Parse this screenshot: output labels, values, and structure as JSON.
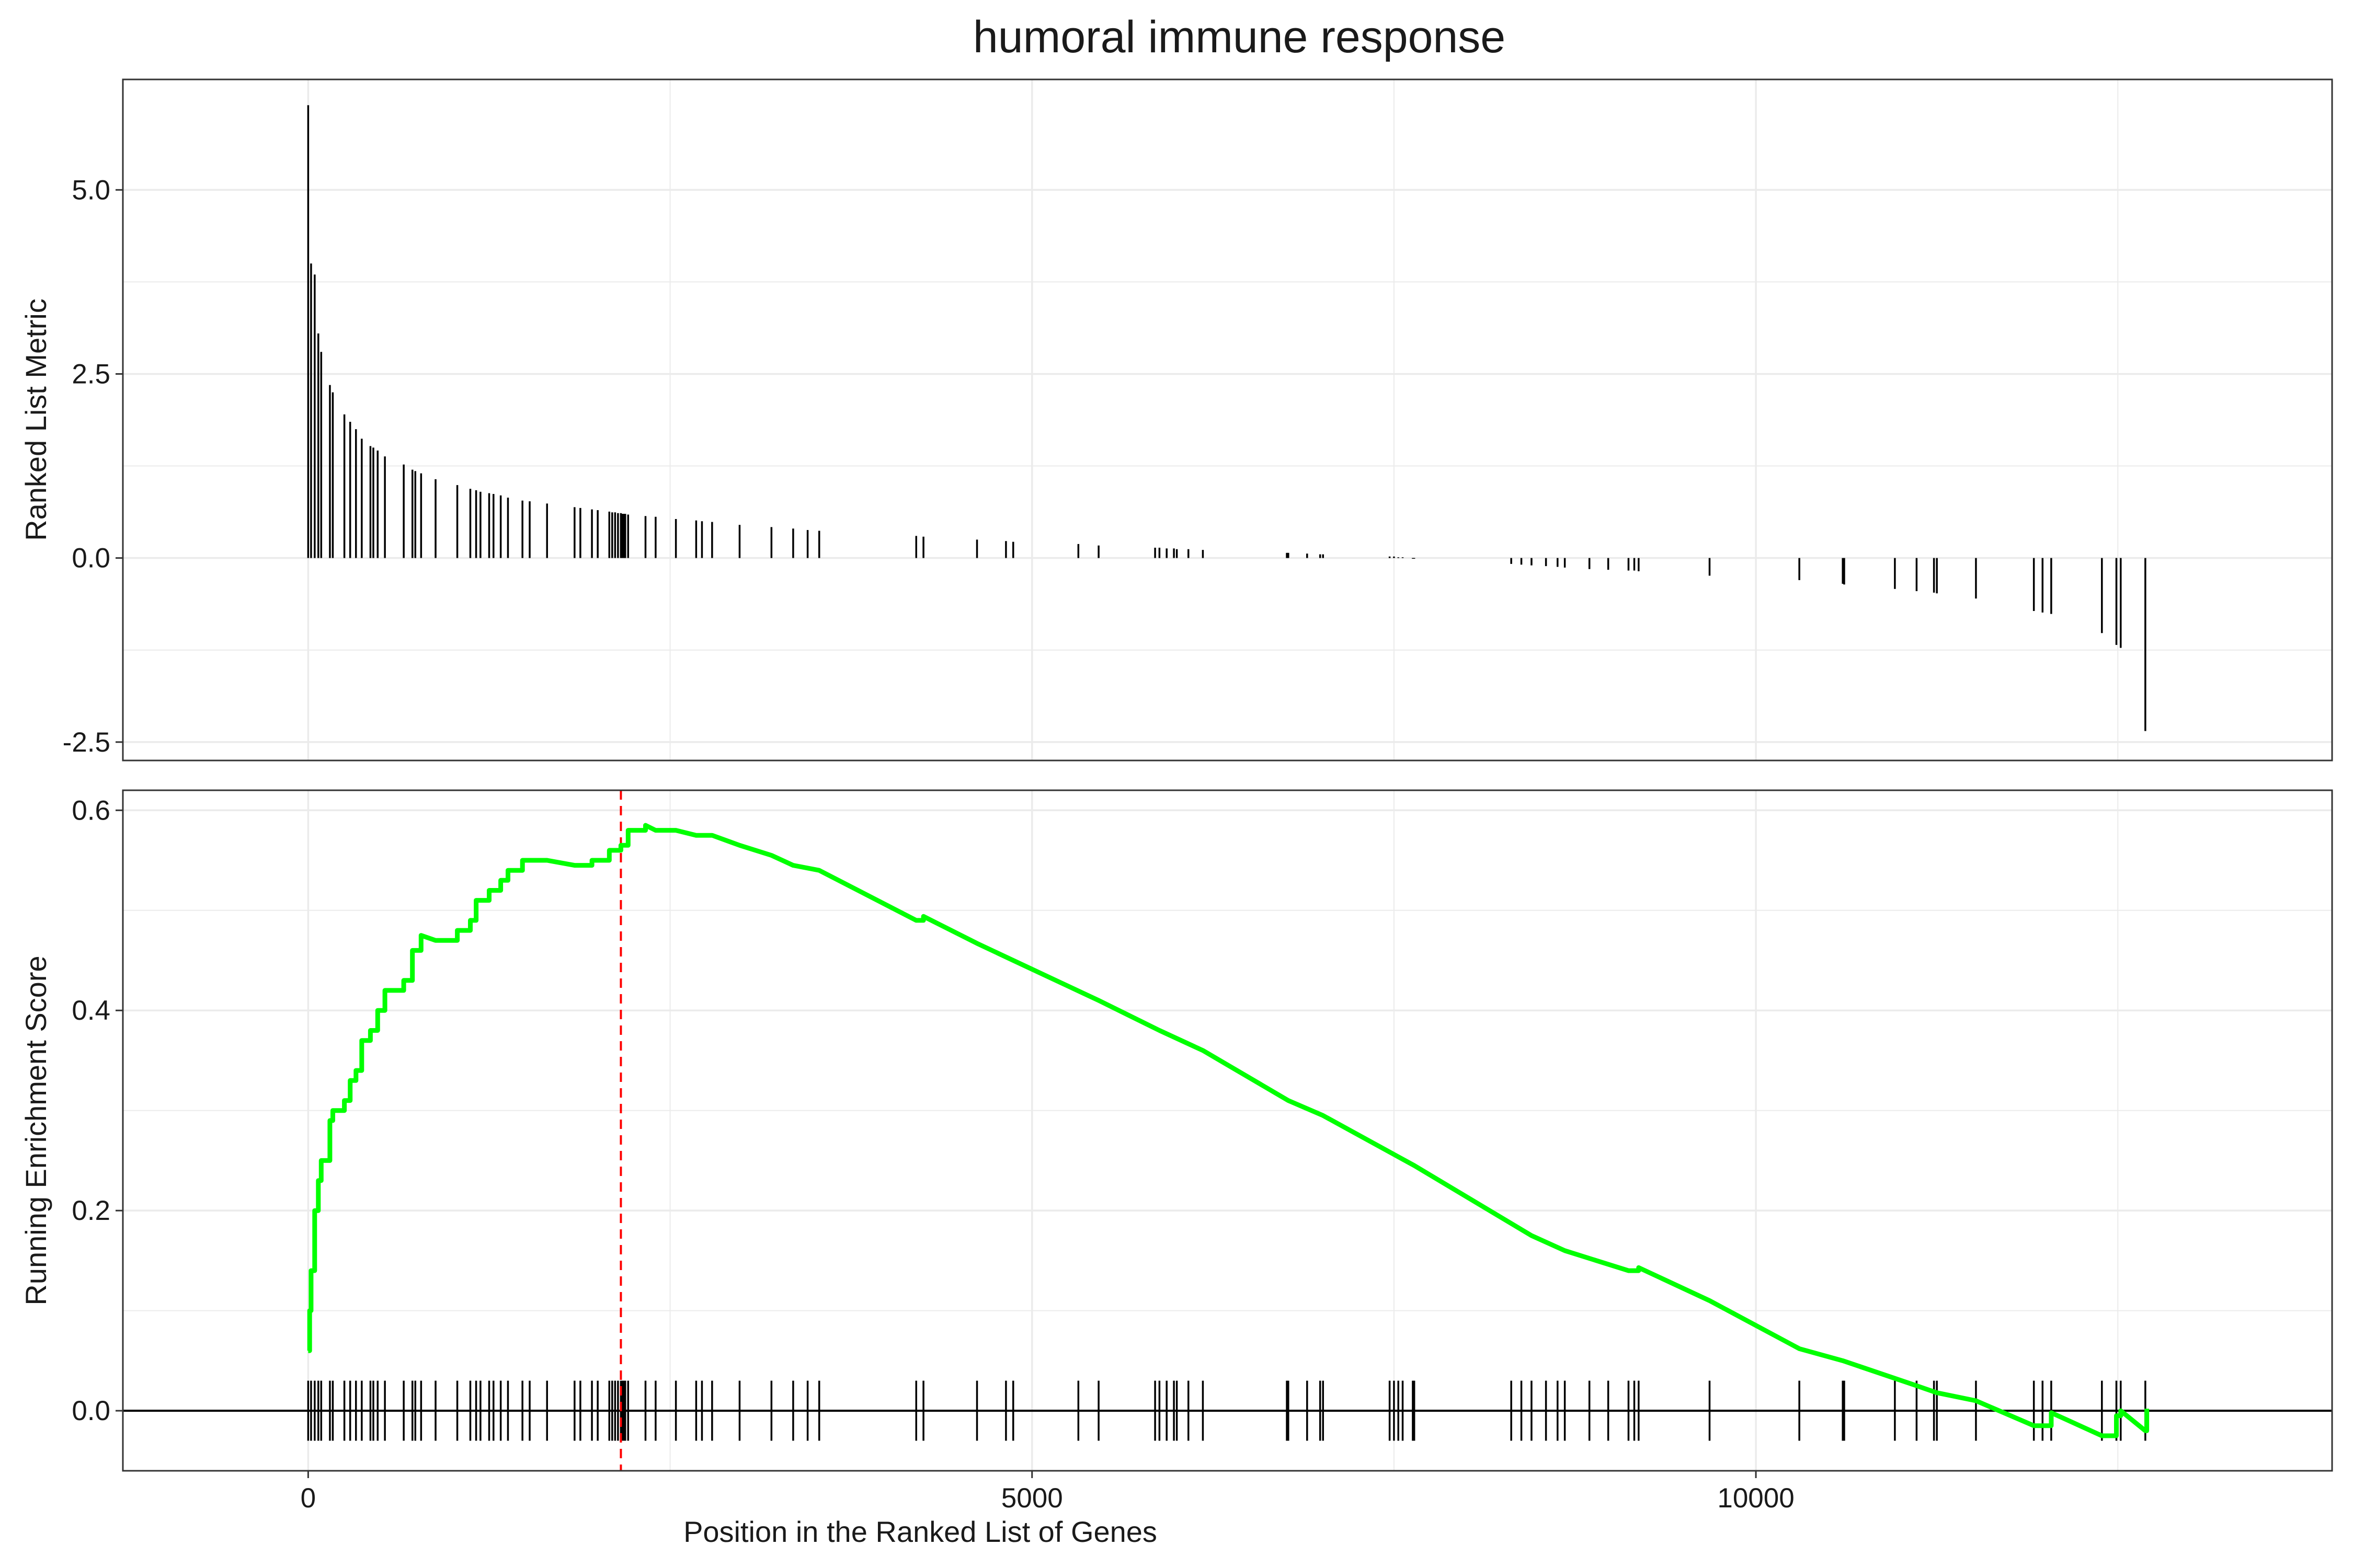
{
  "chart_data": [
    {
      "type": "bar",
      "title": "humoral immune response",
      "xlabel": "",
      "ylabel": "Ranked List Metric",
      "xlim": [
        -1280,
        13980
      ],
      "ylim": [
        -2.75,
        6.5
      ],
      "yticks": [
        "5.0",
        "2.5",
        "0.0",
        "-2.5"
      ],
      "ytick_values": [
        5.0,
        2.5,
        0.0,
        -2.5
      ],
      "grid": true,
      "bars": [
        {
          "x": 0,
          "y": 6.15
        },
        {
          "x": 20,
          "y": 4.0
        },
        {
          "x": 45,
          "y": 3.85
        },
        {
          "x": 70,
          "y": 3.05
        },
        {
          "x": 90,
          "y": 2.8
        },
        {
          "x": 150,
          "y": 2.35
        },
        {
          "x": 170,
          "y": 2.25
        },
        {
          "x": 250,
          "y": 1.95
        },
        {
          "x": 290,
          "y": 1.85
        },
        {
          "x": 330,
          "y": 1.75
        },
        {
          "x": 370,
          "y": 1.62
        },
        {
          "x": 430,
          "y": 1.52
        },
        {
          "x": 450,
          "y": 1.5
        },
        {
          "x": 480,
          "y": 1.46
        },
        {
          "x": 530,
          "y": 1.38
        },
        {
          "x": 660,
          "y": 1.27
        },
        {
          "x": 720,
          "y": 1.2
        },
        {
          "x": 740,
          "y": 1.18
        },
        {
          "x": 780,
          "y": 1.15
        },
        {
          "x": 880,
          "y": 1.07
        },
        {
          "x": 1030,
          "y": 0.99
        },
        {
          "x": 1120,
          "y": 0.94
        },
        {
          "x": 1160,
          "y": 0.92
        },
        {
          "x": 1190,
          "y": 0.9
        },
        {
          "x": 1250,
          "y": 0.88
        },
        {
          "x": 1280,
          "y": 0.87
        },
        {
          "x": 1330,
          "y": 0.85
        },
        {
          "x": 1380,
          "y": 0.82
        },
        {
          "x": 1480,
          "y": 0.78
        },
        {
          "x": 1530,
          "y": 0.77
        },
        {
          "x": 1650,
          "y": 0.74
        },
        {
          "x": 1840,
          "y": 0.69
        },
        {
          "x": 1880,
          "y": 0.68
        },
        {
          "x": 1960,
          "y": 0.66
        },
        {
          "x": 2000,
          "y": 0.65
        },
        {
          "x": 2080,
          "y": 0.63
        },
        {
          "x": 2100,
          "y": 0.62
        },
        {
          "x": 2120,
          "y": 0.62
        },
        {
          "x": 2140,
          "y": 0.61
        },
        {
          "x": 2160,
          "y": 0.61
        },
        {
          "x": 2170,
          "y": 0.6
        },
        {
          "x": 2180,
          "y": 0.6
        },
        {
          "x": 2190,
          "y": 0.6
        },
        {
          "x": 2210,
          "y": 0.59
        },
        {
          "x": 2330,
          "y": 0.57
        },
        {
          "x": 2400,
          "y": 0.56
        },
        {
          "x": 2540,
          "y": 0.53
        },
        {
          "x": 2680,
          "y": 0.51
        },
        {
          "x": 2720,
          "y": 0.5
        },
        {
          "x": 2790,
          "y": 0.49
        },
        {
          "x": 2980,
          "y": 0.45
        },
        {
          "x": 3200,
          "y": 0.42
        },
        {
          "x": 3350,
          "y": 0.4
        },
        {
          "x": 3450,
          "y": 0.38
        },
        {
          "x": 3530,
          "y": 0.37
        },
        {
          "x": 4200,
          "y": 0.3
        },
        {
          "x": 4250,
          "y": 0.29
        },
        {
          "x": 4620,
          "y": 0.25
        },
        {
          "x": 4820,
          "y": 0.23
        },
        {
          "x": 4870,
          "y": 0.22
        },
        {
          "x": 5320,
          "y": 0.19
        },
        {
          "x": 5460,
          "y": 0.17
        },
        {
          "x": 5850,
          "y": 0.14
        },
        {
          "x": 5880,
          "y": 0.14
        },
        {
          "x": 5930,
          "y": 0.13
        },
        {
          "x": 5980,
          "y": 0.13
        },
        {
          "x": 6000,
          "y": 0.12
        },
        {
          "x": 6080,
          "y": 0.12
        },
        {
          "x": 6180,
          "y": 0.11
        },
        {
          "x": 6760,
          "y": 0.07
        },
        {
          "x": 6770,
          "y": 0.07
        },
        {
          "x": 6900,
          "y": 0.06
        },
        {
          "x": 6990,
          "y": 0.05
        },
        {
          "x": 7010,
          "y": 0.05
        },
        {
          "x": 7470,
          "y": 0.02
        },
        {
          "x": 7500,
          "y": 0.02
        },
        {
          "x": 7530,
          "y": 0.01
        },
        {
          "x": 7560,
          "y": 0.01
        },
        {
          "x": 7630,
          "y": -0.01
        },
        {
          "x": 7640,
          "y": -0.01
        },
        {
          "x": 8310,
          "y": -0.08
        },
        {
          "x": 8380,
          "y": -0.09
        },
        {
          "x": 8450,
          "y": -0.1
        },
        {
          "x": 8550,
          "y": -0.11
        },
        {
          "x": 8630,
          "y": -0.12
        },
        {
          "x": 8680,
          "y": -0.13
        },
        {
          "x": 8850,
          "y": -0.15
        },
        {
          "x": 8980,
          "y": -0.16
        },
        {
          "x": 9120,
          "y": -0.17
        },
        {
          "x": 9160,
          "y": -0.17
        },
        {
          "x": 9190,
          "y": -0.18
        },
        {
          "x": 9680,
          "y": -0.24
        },
        {
          "x": 10300,
          "y": -0.3
        },
        {
          "x": 10600,
          "y": -0.35
        },
        {
          "x": 10610,
          "y": -0.36
        },
        {
          "x": 10960,
          "y": -0.42
        },
        {
          "x": 11110,
          "y": -0.45
        },
        {
          "x": 11230,
          "y": -0.47
        },
        {
          "x": 11250,
          "y": -0.48
        },
        {
          "x": 11520,
          "y": -0.55
        },
        {
          "x": 11920,
          "y": -0.72
        },
        {
          "x": 11980,
          "y": -0.74
        },
        {
          "x": 12040,
          "y": -0.76
        },
        {
          "x": 12390,
          "y": -1.02
        },
        {
          "x": 12490,
          "y": -1.18
        },
        {
          "x": 12520,
          "y": -1.22
        },
        {
          "x": 12690,
          "y": -2.35
        }
      ]
    },
    {
      "type": "line",
      "title": "",
      "xlabel": "Position in the Ranked List of Genes",
      "ylabel": "Running Enrichment Score",
      "xlim": [
        -1280,
        13980
      ],
      "ylim": [
        -0.06,
        0.62
      ],
      "xticks": [
        "0",
        "5000",
        "10000"
      ],
      "xtick_values": [
        0,
        5000,
        10000
      ],
      "yticks": [
        "0.6",
        "0.4",
        "0.2",
        "0.0"
      ],
      "ytick_values": [
        0.6,
        0.4,
        0.2,
        0.0
      ],
      "grid": true,
      "series": [
        {
          "color": "#00ff00",
          "x": [
            0,
            10,
            20,
            45,
            70,
            90,
            150,
            170,
            250,
            290,
            330,
            370,
            430,
            480,
            530,
            660,
            720,
            780,
            880,
            1030,
            1120,
            1160,
            1250,
            1330,
            1380,
            1480,
            1650,
            1840,
            1960,
            2080,
            2160,
            2210,
            2330,
            2400,
            2540,
            2680,
            2790,
            2980,
            3200,
            3350,
            3530,
            4200,
            4250,
            4620,
            4870,
            5460,
            5880,
            6180,
            6770,
            7010,
            7640,
            8450,
            8680,
            9120,
            9190,
            9680,
            10300,
            10600,
            11110,
            11250,
            11520,
            11920,
            12040,
            12390,
            12490,
            12520,
            12690,
            12700
          ],
          "y": [
            0.06,
            0.1,
            0.14,
            0.2,
            0.23,
            0.25,
            0.29,
            0.3,
            0.31,
            0.33,
            0.34,
            0.37,
            0.38,
            0.4,
            0.42,
            0.43,
            0.46,
            0.475,
            0.47,
            0.48,
            0.49,
            0.51,
            0.52,
            0.53,
            0.54,
            0.55,
            0.55,
            0.545,
            0.55,
            0.56,
            0.565,
            0.58,
            0.585,
            0.58,
            0.58,
            0.575,
            0.575,
            0.565,
            0.555,
            0.545,
            0.54,
            0.49,
            0.494,
            0.467,
            0.45,
            0.41,
            0.38,
            0.36,
            0.31,
            0.295,
            0.245,
            0.175,
            0.16,
            0.14,
            0.143,
            0.11,
            0.062,
            0.05,
            0.025,
            0.018,
            0.01,
            -0.015,
            -0.002,
            -0.025,
            -0.005,
            0.0,
            -0.02,
            0.002
          ]
        }
      ],
      "vline": {
        "x": 2160,
        "color": "#ff0000",
        "style": "dashed"
      },
      "hline": {
        "y": 0.0
      }
    }
  ]
}
